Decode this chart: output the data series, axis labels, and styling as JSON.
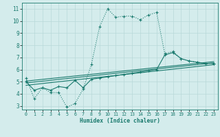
{
  "xlabel": "Humidex (Indice chaleur)",
  "bg_color": "#d4ecec",
  "grid_color": "#b8d8d8",
  "line_color": "#1a7a6e",
  "xlim": [
    -0.5,
    23.5
  ],
  "ylim": [
    2.7,
    11.5
  ],
  "yticks": [
    3,
    4,
    5,
    6,
    7,
    8,
    9,
    10,
    11
  ],
  "xticks": [
    0,
    1,
    2,
    3,
    4,
    5,
    6,
    7,
    8,
    9,
    10,
    11,
    12,
    13,
    14,
    15,
    16,
    17,
    18,
    19,
    20,
    21,
    22,
    23
  ],
  "series_dotted": {
    "x": [
      0,
      1,
      2,
      3,
      4,
      5,
      6,
      7,
      8,
      9,
      10,
      11,
      12,
      13,
      14,
      15,
      16,
      17,
      18,
      19,
      20,
      21,
      22,
      23
    ],
    "y": [
      5.3,
      3.6,
      4.5,
      4.1,
      4.1,
      2.9,
      3.2,
      4.4,
      6.4,
      9.5,
      11.0,
      10.3,
      10.4,
      10.4,
      10.1,
      10.5,
      10.7,
      7.3,
      7.5,
      6.9,
      6.7,
      6.6,
      6.5,
      6.5
    ]
  },
  "series_markers": {
    "x": [
      0,
      3,
      4,
      5,
      6,
      7,
      8,
      17,
      18,
      19,
      20,
      21,
      22,
      23
    ],
    "y": [
      5.3,
      4.1,
      4.1,
      2.9,
      3.2,
      4.4,
      6.4,
      7.3,
      7.5,
      6.9,
      6.7,
      6.6,
      6.5,
      6.5
    ]
  },
  "series_solid": {
    "x": [
      0,
      1,
      2,
      3,
      4,
      5,
      6,
      7,
      8,
      9,
      10,
      11,
      12,
      13,
      14,
      15,
      16,
      17,
      18,
      19,
      20,
      21,
      22,
      23
    ],
    "y": [
      5.0,
      4.3,
      4.5,
      4.3,
      4.6,
      4.5,
      5.1,
      4.5,
      5.2,
      5.3,
      5.4,
      5.5,
      5.6,
      5.7,
      5.8,
      5.9,
      6.0,
      7.2,
      7.4,
      6.9,
      6.7,
      6.6,
      6.5,
      6.5
    ]
  },
  "linear_lines": [
    {
      "x": [
        0,
        23
      ],
      "y": [
        4.7,
        6.4
      ]
    },
    {
      "x": [
        0,
        23
      ],
      "y": [
        4.9,
        6.55
      ]
    },
    {
      "x": [
        0,
        23
      ],
      "y": [
        5.05,
        6.65
      ]
    }
  ]
}
